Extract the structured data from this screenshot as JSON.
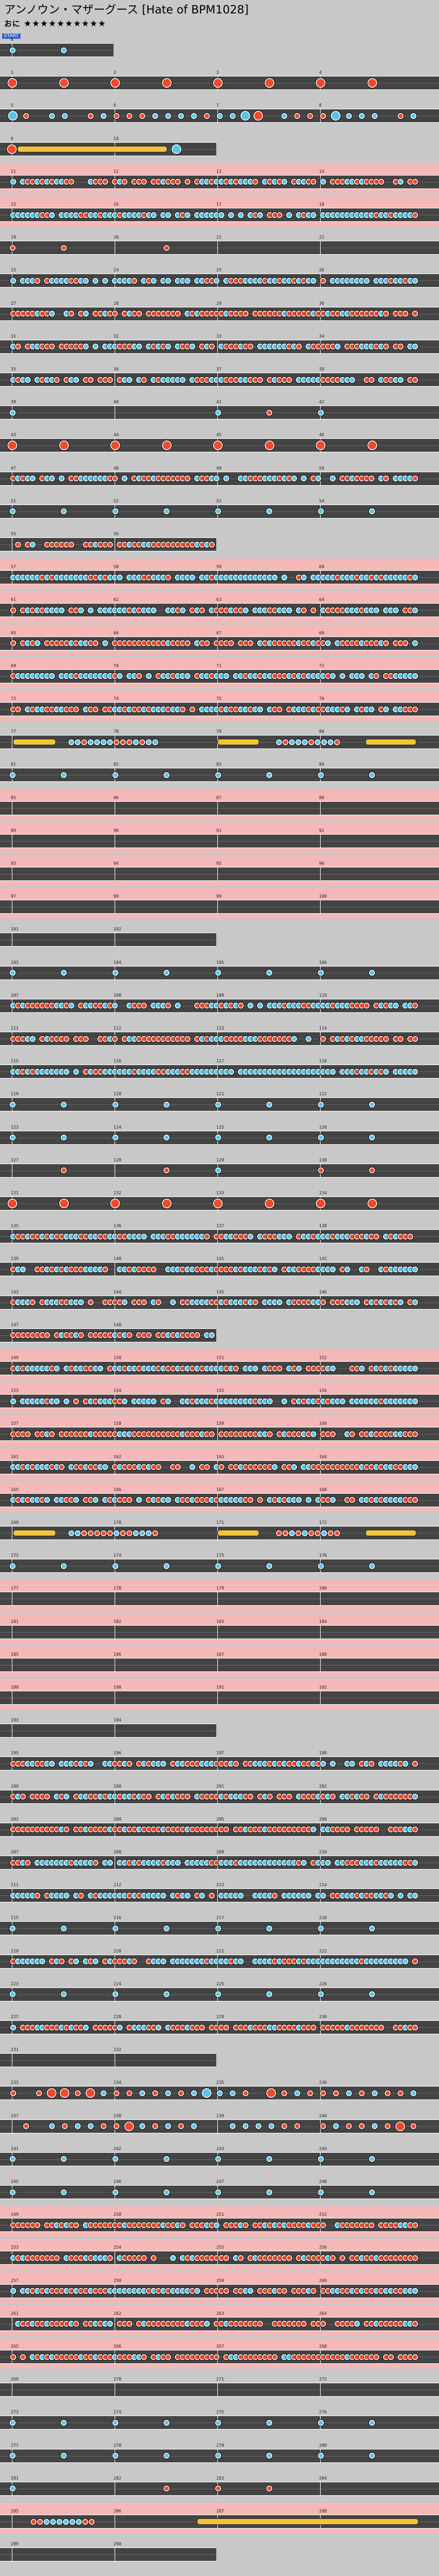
{
  "header": {
    "title": "アンノウン・マザーグース [Hate of BPM1028]",
    "difficulty_label": "おに",
    "stars": "★★★★★★★★★★",
    "start_label": "START"
  },
  "colors": {
    "background": "#c8c8c8",
    "lane": "#444444",
    "gogo": "#f5b8b8",
    "don": "#f04a2c",
    "ka": "#59c4e8",
    "roll": "#f2c33a"
  },
  "chart": {
    "measures_per_row": 4,
    "rows": [
      {
        "first_measure": 0,
        "measures": 1,
        "gogo": false,
        "pattern": "ka-sparse"
      },
      {
        "first_measure": 1,
        "measures": 4,
        "gogo": false,
        "pattern": "don-sparse"
      },
      {
        "first_measure": 5,
        "measures": 4,
        "gogo": false,
        "pattern": "don-ka-mix"
      },
      {
        "first_measure": 9,
        "measures": 2,
        "gogo": false,
        "pattern": "roll"
      },
      {
        "first_measure": 11,
        "measures": 4,
        "gogo": true,
        "pattern": "dense-mix"
      },
      {
        "first_measure": 15,
        "measures": 4,
        "gogo": true,
        "pattern": "dense-ka"
      },
      {
        "first_measure": 19,
        "measures": 4,
        "gogo": false,
        "pattern": "sparse"
      },
      {
        "first_measure": 23,
        "measures": 4,
        "gogo": false,
        "pattern": "dense-ka"
      },
      {
        "first_measure": 27,
        "measures": 4,
        "gogo": false,
        "pattern": "dense-don"
      },
      {
        "first_measure": 31,
        "measures": 4,
        "gogo": false,
        "pattern": "dense-mix"
      },
      {
        "first_measure": 35,
        "measures": 4,
        "gogo": false,
        "pattern": "dense-mix"
      },
      {
        "first_measure": 39,
        "measures": 4,
        "gogo": false,
        "pattern": "sparse"
      },
      {
        "first_measure": 43,
        "measures": 4,
        "gogo": false,
        "pattern": "don-sparse"
      },
      {
        "first_measure": 47,
        "measures": 4,
        "gogo": false,
        "pattern": "dense-mix"
      },
      {
        "first_measure": 51,
        "measures": 4,
        "gogo": false,
        "pattern": "ka-sparse"
      },
      {
        "first_measure": 55,
        "measures": 2,
        "gogo": false,
        "pattern": "dense-don"
      },
      {
        "first_measure": 57,
        "measures": 4,
        "gogo": true,
        "pattern": "dense-ka"
      },
      {
        "first_measure": 61,
        "measures": 4,
        "gogo": true,
        "pattern": "dense-ka"
      },
      {
        "first_measure": 65,
        "measures": 4,
        "gogo": true,
        "pattern": "dense-don"
      },
      {
        "first_measure": 69,
        "measures": 4,
        "gogo": true,
        "pattern": "dense-ka"
      },
      {
        "first_measure": 73,
        "measures": 4,
        "gogo": true,
        "pattern": "dense-mix"
      },
      {
        "first_measure": 77,
        "measures": 4,
        "gogo": false,
        "pattern": "roll-mix"
      },
      {
        "first_measure": 81,
        "measures": 4,
        "gogo": false,
        "pattern": "ka-sparse"
      },
      {
        "first_measure": 85,
        "measures": 4,
        "gogo": true,
        "pattern": "empty"
      },
      {
        "first_measure": 89,
        "measures": 4,
        "gogo": true,
        "pattern": "empty"
      },
      {
        "first_measure": 93,
        "measures": 4,
        "gogo": true,
        "pattern": "empty"
      },
      {
        "first_measure": 97,
        "measures": 4,
        "gogo": true,
        "pattern": "empty"
      },
      {
        "first_measure": 101,
        "measures": 2,
        "gogo": false,
        "pattern": "empty"
      },
      {
        "first_measure": 103,
        "measures": 4,
        "gogo": false,
        "pattern": "ka-sparse"
      },
      {
        "first_measure": 107,
        "measures": 4,
        "gogo": false,
        "pattern": "dense-mix"
      },
      {
        "first_measure": 111,
        "measures": 4,
        "gogo": false,
        "pattern": "dense-don"
      },
      {
        "first_measure": 115,
        "measures": 4,
        "gogo": false,
        "pattern": "dense-ka"
      },
      {
        "first_measure": 119,
        "measures": 4,
        "gogo": false,
        "pattern": "ka-sparse"
      },
      {
        "first_measure": 123,
        "measures": 4,
        "gogo": false,
        "pattern": "ka-sparse"
      },
      {
        "first_measure": 127,
        "measures": 4,
        "gogo": false,
        "pattern": "sparse"
      },
      {
        "first_measure": 131,
        "measures": 4,
        "gogo": false,
        "pattern": "don-sparse"
      },
      {
        "first_measure": 135,
        "measures": 4,
        "gogo": false,
        "pattern": "dense-mix"
      },
      {
        "first_measure": 139,
        "measures": 4,
        "gogo": false,
        "pattern": "dense-mix"
      },
      {
        "first_measure": 143,
        "measures": 4,
        "gogo": false,
        "pattern": "dense-mix"
      },
      {
        "first_measure": 147,
        "measures": 2,
        "gogo": false,
        "pattern": "dense-don"
      },
      {
        "first_measure": 149,
        "measures": 4,
        "gogo": true,
        "pattern": "dense-ka"
      },
      {
        "first_measure": 153,
        "measures": 4,
        "gogo": true,
        "pattern": "dense-ka"
      },
      {
        "first_measure": 157,
        "measures": 4,
        "gogo": true,
        "pattern": "dense-don"
      },
      {
        "first_measure": 161,
        "measures": 4,
        "gogo": true,
        "pattern": "dense-mix"
      },
      {
        "first_measure": 165,
        "measures": 4,
        "gogo": true,
        "pattern": "dense-mix"
      },
      {
        "first_measure": 169,
        "measures": 4,
        "gogo": false,
        "pattern": "roll-mix"
      },
      {
        "first_measure": 173,
        "measures": 4,
        "gogo": false,
        "pattern": "ka-sparse"
      },
      {
        "first_measure": 177,
        "measures": 4,
        "gogo": true,
        "pattern": "empty"
      },
      {
        "first_measure": 181,
        "measures": 4,
        "gogo": true,
        "pattern": "empty"
      },
      {
        "first_measure": 185,
        "measures": 4,
        "gogo": true,
        "pattern": "empty"
      },
      {
        "first_measure": 189,
        "measures": 4,
        "gogo": true,
        "pattern": "empty"
      },
      {
        "first_measure": 193,
        "measures": 2,
        "gogo": false,
        "pattern": "empty"
      },
      {
        "first_measure": 195,
        "measures": 4,
        "gogo": false,
        "pattern": "dense-mix"
      },
      {
        "first_measure": 199,
        "measures": 4,
        "gogo": false,
        "pattern": "dense-mix"
      },
      {
        "first_measure": 203,
        "measures": 4,
        "gogo": false,
        "pattern": "dense-don"
      },
      {
        "first_measure": 207,
        "measures": 4,
        "gogo": false,
        "pattern": "dense-ka"
      },
      {
        "first_measure": 211,
        "measures": 4,
        "gogo": false,
        "pattern": "dense-ka"
      },
      {
        "first_measure": 215,
        "measures": 4,
        "gogo": false,
        "pattern": "ka-sparse"
      },
      {
        "first_measure": 219,
        "measures": 4,
        "gogo": false,
        "pattern": "dense-ka"
      },
      {
        "first_measure": 223,
        "measures": 4,
        "gogo": false,
        "pattern": "ka-sparse"
      },
      {
        "first_measure": 227,
        "measures": 4,
        "gogo": false,
        "pattern": "dense-don"
      },
      {
        "first_measure": 231,
        "measures": 2,
        "gogo": false,
        "pattern": "empty"
      },
      {
        "first_measure": 233,
        "measures": 4,
        "gogo": false,
        "pattern": "don-ka-mix"
      },
      {
        "first_measure": 237,
        "measures": 4,
        "gogo": false,
        "pattern": "don-ka-mix"
      },
      {
        "first_measure": 241,
        "measures": 4,
        "gogo": false,
        "pattern": "ka-sparse"
      },
      {
        "first_measure": 245,
        "measures": 4,
        "gogo": false,
        "pattern": "ka-sparse"
      },
      {
        "first_measure": 249,
        "measures": 4,
        "gogo": true,
        "pattern": "dense-don"
      },
      {
        "first_measure": 253,
        "measures": 4,
        "gogo": true,
        "pattern": "dense-don"
      },
      {
        "first_measure": 257,
        "measures": 4,
        "gogo": true,
        "pattern": "dense-mix"
      },
      {
        "first_measure": 261,
        "measures": 4,
        "gogo": true,
        "pattern": "dense-don"
      },
      {
        "first_measure": 265,
        "measures": 4,
        "gogo": true,
        "pattern": "dense-don"
      },
      {
        "first_measure": 269,
        "measures": 4,
        "gogo": false,
        "pattern": "empty"
      },
      {
        "first_measure": 273,
        "measures": 4,
        "gogo": false,
        "pattern": "ka-sparse"
      },
      {
        "first_measure": 277,
        "measures": 4,
        "gogo": false,
        "pattern": "ka-sparse"
      },
      {
        "first_measure": 281,
        "measures": 4,
        "gogo": false,
        "pattern": "sparse"
      },
      {
        "first_measure": 285,
        "measures": 4,
        "gogo": true,
        "pattern": "roll-end"
      },
      {
        "first_measure": 289,
        "measures": 2,
        "gogo": false,
        "pattern": "empty"
      }
    ]
  }
}
